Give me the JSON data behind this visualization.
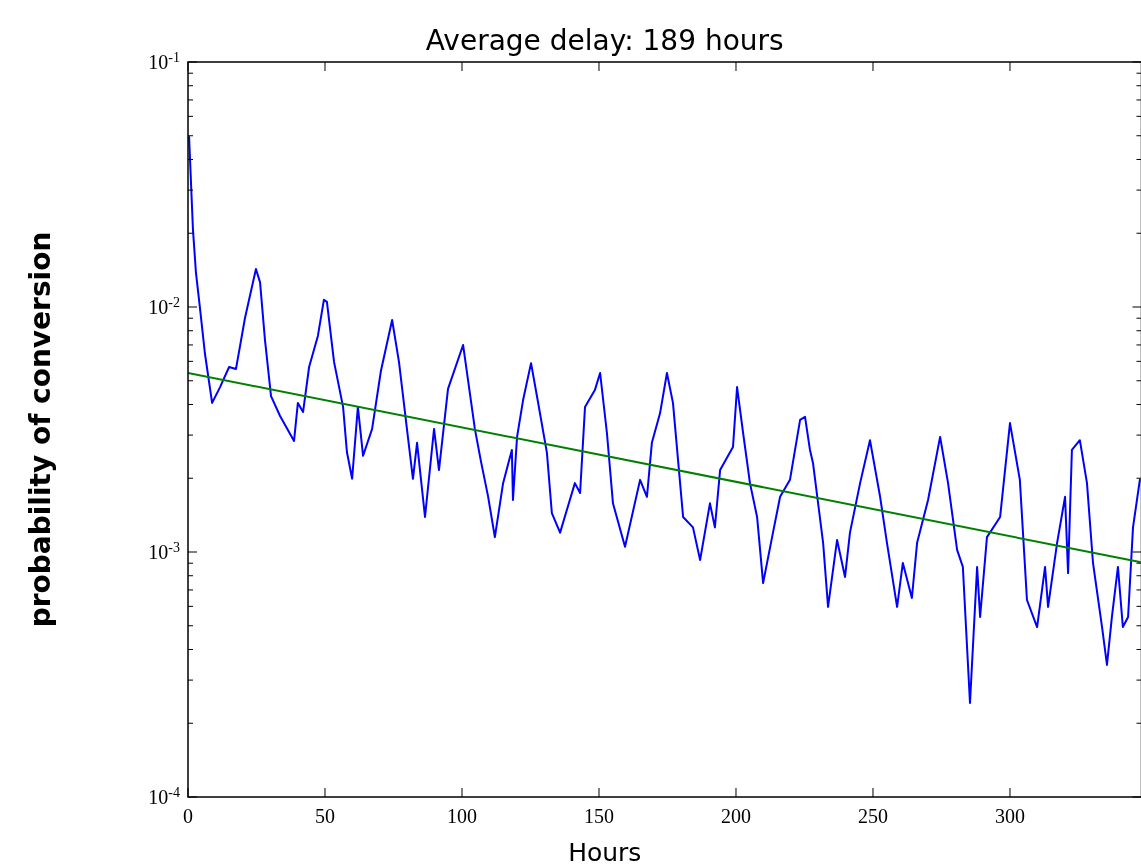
{
  "chart_data": {
    "type": "line",
    "title": "Average delay: 189 hours",
    "xlabel": "Hours",
    "ylabel": "probability of conversion",
    "log": "y",
    "xlim": [
      0,
      348
    ],
    "xticks": [
      0,
      50,
      100,
      150,
      200,
      250,
      300
    ],
    "ylim": [
      0.0001,
      0.1
    ],
    "yticks": [
      {
        "value": 0.0001,
        "label": "10$^{-4}$"
      },
      {
        "value": 0.0002,
        "label": null
      },
      {
        "value": 0.0003,
        "label": null
      },
      {
        "value": 0.0004,
        "label": null
      },
      {
        "value": 0.0005,
        "label": null
      },
      {
        "value": 0.0006,
        "label": null
      },
      {
        "value": 0.0007,
        "label": null
      },
      {
        "value": 0.0008,
        "label": null
      },
      {
        "value": 0.0009,
        "label": null
      },
      {
        "value": 0.001,
        "label": "10$^{-3}$"
      },
      {
        "value": 0.002,
        "label": null
      },
      {
        "value": 0.003,
        "label": null
      },
      {
        "value": 0.004,
        "label": null
      },
      {
        "value": 0.005,
        "label": null
      },
      {
        "value": 0.006,
        "label": null
      },
      {
        "value": 0.007,
        "label": null
      },
      {
        "value": 0.008,
        "label": null
      },
      {
        "value": 0.009,
        "label": null
      },
      {
        "value": 0.01,
        "label": "10$^{-2}$"
      },
      {
        "value": 0.02,
        "label": null
      },
      {
        "value": 0.03,
        "label": null
      },
      {
        "value": 0.04,
        "label": null
      },
      {
        "value": 0.05,
        "label": null
      },
      {
        "value": 0.06,
        "label": null
      },
      {
        "value": 0.07,
        "label": null
      },
      {
        "value": 0.08,
        "label": null
      },
      {
        "value": 0.09,
        "label": null
      },
      {
        "value": 0.1,
        "label": "10$^{-1}$"
      }
    ],
    "series": [
      {
        "color": "#0000ff",
        "x": [
          0.4,
          1.8,
          2.9,
          4.4,
          6.2,
          8.8,
          11.7,
          15.0,
          17.5,
          20.8,
          24.8,
          26.3,
          28.1,
          30.3,
          33.6,
          38.7,
          40.1,
          42.0,
          44.2,
          47.4,
          49.6,
          50.7,
          53.3,
          56.6,
          58.0,
          59.9,
          62.0,
          63.9,
          67.2,
          70.4,
          74.5,
          77.0,
          80.3,
          82.1,
          83.6,
          86.5,
          89.8,
          91.6,
          94.9,
          100.4,
          104.7,
          106.9,
          109.5,
          112.0,
          115.0,
          118.2,
          118.6,
          120.1,
          122.3,
          125.2,
          127.4,
          131.0,
          132.8,
          135.8,
          141.2,
          143.1,
          144.9,
          148.5,
          150.4,
          152.9,
          155.1,
          159.5,
          165.0,
          167.5,
          169.3,
          172.3,
          174.8,
          177.0,
          179.6,
          180.7,
          184.3,
          186.9,
          190.5,
          192.3,
          194.2,
          198.9,
          200.4,
          202.6,
          205.1,
          207.7,
          209.9,
          213.5,
          216.1,
          219.7,
          223.4,
          225.2,
          227.0,
          228.1,
          231.8,
          233.6,
          236.9,
          239.8,
          241.6,
          245.3,
          248.9,
          252.6,
          255.1,
          258.8,
          260.9,
          264.2,
          266.1,
          270.1,
          274.5,
          277.4,
          280.7,
          282.8,
          285.4,
          288.0,
          289.1,
          291.6,
          296.4,
          300.0,
          303.6,
          306.2,
          309.9,
          312.8,
          313.9,
          317.2,
          320.1,
          321.2,
          322.6,
          325.5,
          328.1,
          330.3,
          333.6,
          335.4,
          337.2,
          339.4,
          341.2,
          343.1,
          344.9,
          347.4
        ],
        "values": [
          0.0494,
          0.0208,
          0.0138,
          0.00982,
          0.00643,
          0.00406,
          0.00471,
          0.00569,
          0.00558,
          0.00902,
          0.0143,
          0.0126,
          0.00733,
          0.00433,
          0.00359,
          0.00284,
          0.00406,
          0.00373,
          0.00569,
          0.00762,
          0.0107,
          0.0105,
          0.00597,
          0.00391,
          0.00256,
          0.00199,
          0.00391,
          0.00247,
          0.00318,
          0.00548,
          0.00885,
          0.00597,
          0.00292,
          0.00199,
          0.00279,
          0.00139,
          0.00318,
          0.00216,
          0.00463,
          0.007,
          0.00318,
          0.00235,
          0.00169,
          0.00115,
          0.00191,
          0.00261,
          0.00163,
          0.00295,
          0.00417,
          0.0059,
          0.0043,
          0.00254,
          0.00144,
          0.0012,
          0.00191,
          0.00174,
          0.00391,
          0.00458,
          0.00538,
          0.00306,
          0.00158,
          0.00105,
          0.00197,
          0.00168,
          0.00279,
          0.00369,
          0.00538,
          0.00406,
          0.00191,
          0.00139,
          0.00126,
          0.000927,
          0.00158,
          0.00126,
          0.00216,
          0.00268,
          0.00471,
          0.00306,
          0.00191,
          0.00139,
          0.000747,
          0.0012,
          0.00168,
          0.00197,
          0.00346,
          0.00356,
          0.00261,
          0.00231,
          0.00109,
          0.000597,
          0.00112,
          0.000791,
          0.0012,
          0.00191,
          0.00286,
          0.00168,
          0.00109,
          0.000597,
          0.000902,
          0.000649,
          0.00109,
          0.00163,
          0.00295,
          0.00191,
          0.00102,
          0.000869,
          0.000242,
          0.000869,
          0.000543,
          0.00115,
          0.00139,
          0.00336,
          0.00197,
          0.000637,
          0.000494,
          0.000869,
          0.000597,
          0.00109,
          0.00168,
          0.00082,
          0.00261,
          0.00286,
          0.00191,
          0.000902,
          0.000494,
          0.000346,
          0.000543,
          0.000869,
          0.000494,
          0.000543,
          0.00126,
          0.00197
        ]
      },
      {
        "color": "#008000",
        "x": [
          0,
          347.4
        ],
        "values": [
          0.00538,
          0.00091
        ]
      }
    ]
  }
}
